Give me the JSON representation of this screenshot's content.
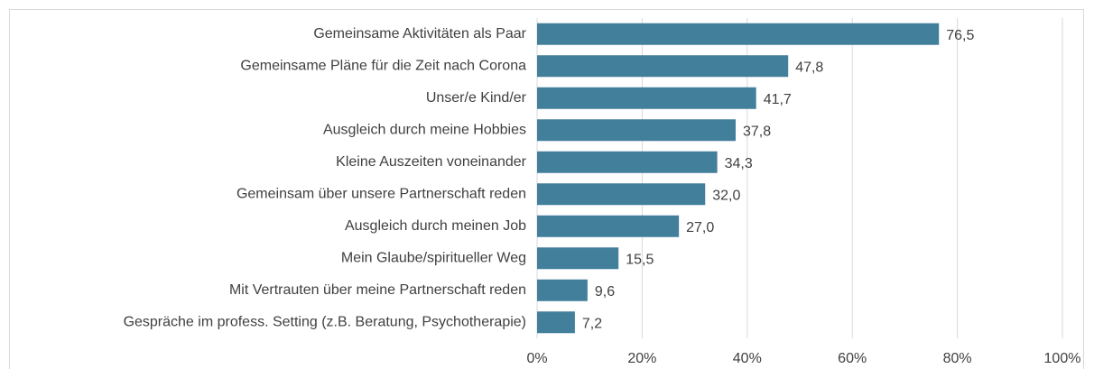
{
  "chart_data": {
    "type": "bar",
    "orientation": "horizontal",
    "categories": [
      "Gemeinsame Aktivitäten als Paar",
      "Gemeinsame Pläne für die Zeit nach Corona",
      "Unser/e Kind/er",
      "Ausgleich durch meine Hobbies",
      "Kleine Auszeiten voneinander",
      "Gemeinsam über unsere Partnerschaft reden",
      "Ausgleich durch meinen Job",
      "Mein Glaube/spiritueller Weg",
      "Mit Vertrauten über meine Partnerschaft reden",
      "Gespräche im profess. Setting (z.B. Beratung, Psychotherapie)"
    ],
    "values": [
      76.5,
      47.8,
      41.7,
      37.8,
      34.3,
      32.0,
      27.0,
      15.5,
      9.6,
      7.2
    ],
    "value_labels": [
      "76,5",
      "47,8",
      "41,7",
      "37,8",
      "34,3",
      "32,0",
      "27,0",
      "15,5",
      "9,6",
      "7,2"
    ],
    "color": "#427f9b",
    "xlim": [
      0,
      100
    ],
    "xticks": [
      {
        "value": 0,
        "label": "0%"
      },
      {
        "value": 20,
        "label": "20%"
      },
      {
        "value": 40,
        "label": "40%"
      },
      {
        "value": 60,
        "label": "60%"
      },
      {
        "value": 80,
        "label": "80%"
      },
      {
        "value": 100,
        "label": "100%"
      }
    ],
    "grid": true
  }
}
